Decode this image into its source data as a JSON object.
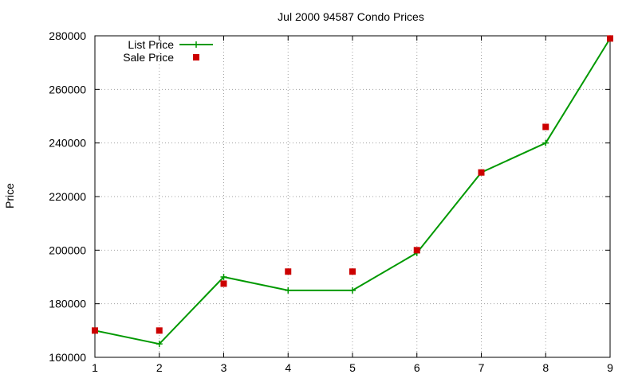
{
  "chart_data": {
    "type": "line",
    "title": "Jul 2000 94587 Condo Prices",
    "xlabel": "",
    "ylabel": "Price",
    "x": [
      1,
      2,
      3,
      4,
      5,
      6,
      7,
      8,
      9
    ],
    "xlim": [
      1,
      9
    ],
    "ylim": [
      160000,
      280000
    ],
    "xticks": [
      1,
      2,
      3,
      4,
      5,
      6,
      7,
      8,
      9
    ],
    "yticks": [
      160000,
      180000,
      200000,
      220000,
      240000,
      260000,
      280000
    ],
    "grid": true,
    "legend_position": "top-left",
    "series": [
      {
        "name": "List Price",
        "style": "line-with-plus-markers",
        "color": "#009900",
        "values": [
          170000,
          165000,
          190000,
          185000,
          185000,
          199000,
          229000,
          240000,
          279000
        ]
      },
      {
        "name": "Sale Price",
        "style": "square-points",
        "color": "#cc0000",
        "values": [
          170000,
          170000,
          187500,
          192000,
          192000,
          200000,
          229000,
          246000,
          279000
        ]
      }
    ]
  }
}
